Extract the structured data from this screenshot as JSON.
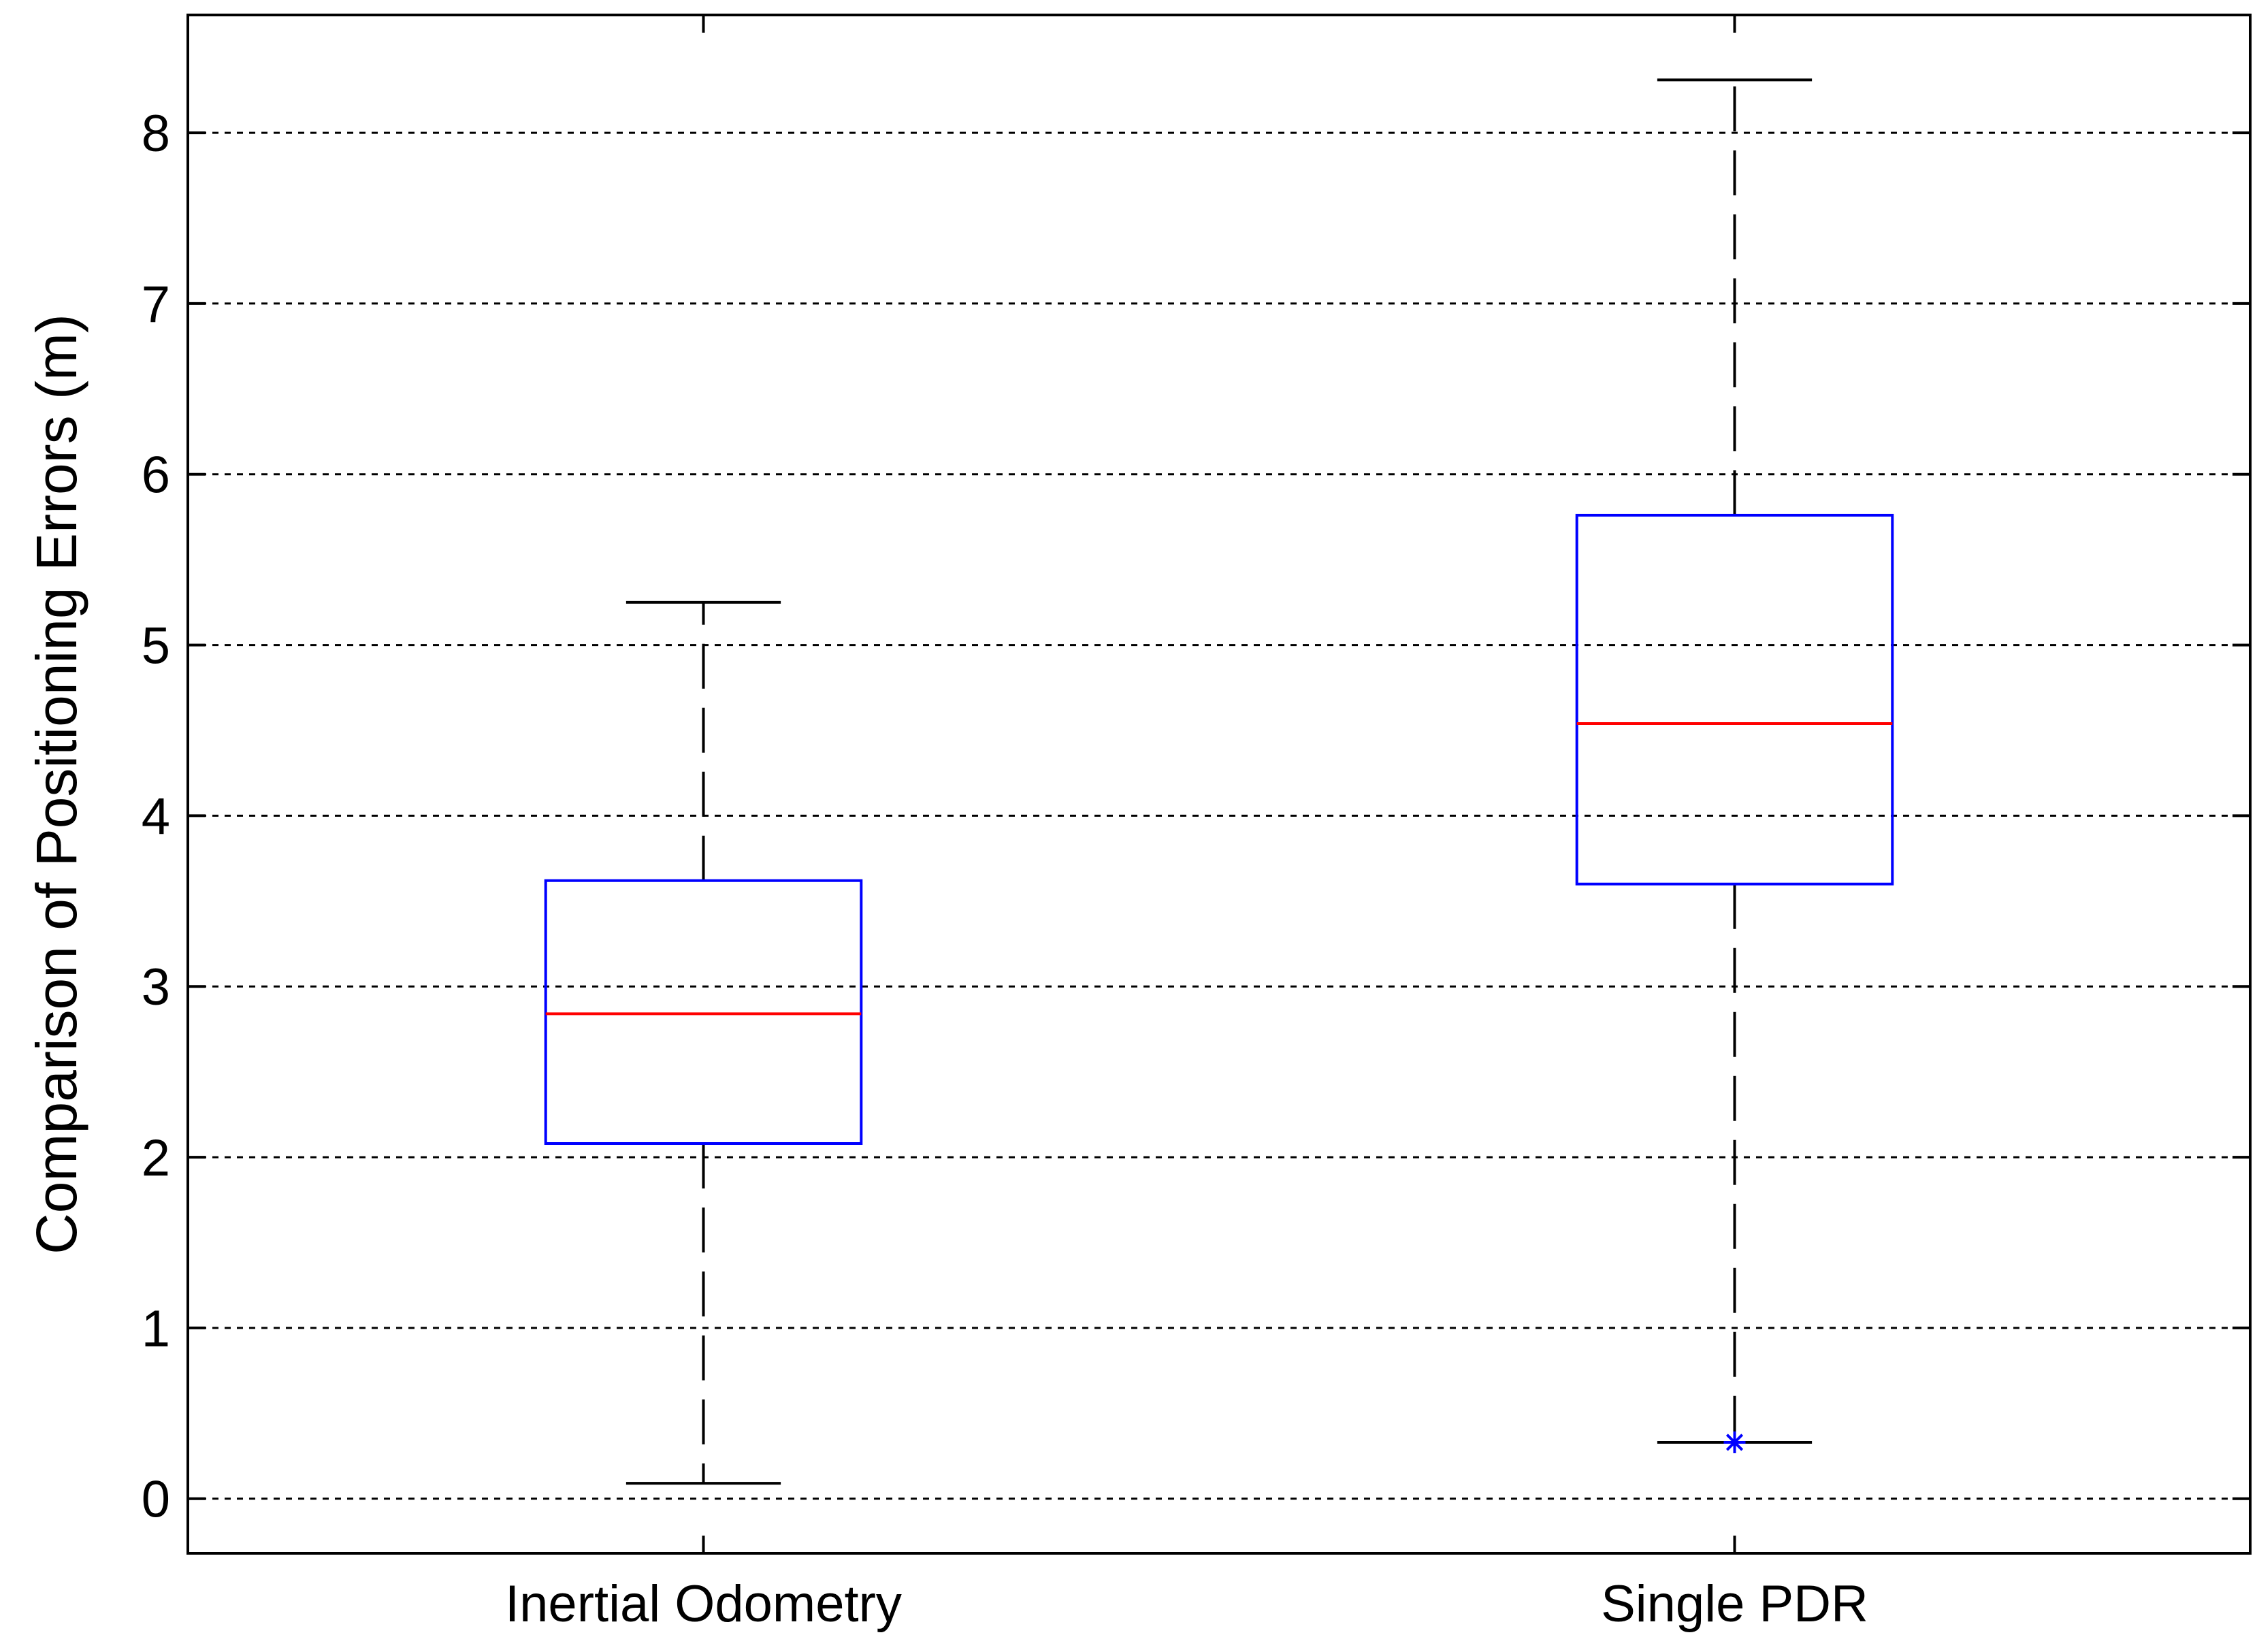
{
  "chart_data": {
    "type": "box",
    "ylabel": "Comparison of Positioning Errors (m)",
    "xlabel": "",
    "title": "",
    "ylim": [
      -0.32,
      8.69
    ],
    "yticks": [
      0,
      1,
      2,
      3,
      4,
      5,
      6,
      7,
      8
    ],
    "grid": true,
    "categories": [
      "Inertial Odometry",
      "Single PDR"
    ],
    "boxes": [
      {
        "category": "Inertial Odometry",
        "whisker_low": 0.09,
        "q1": 2.08,
        "median": 2.84,
        "q3": 3.62,
        "whisker_high": 5.25,
        "outliers": []
      },
      {
        "category": "Single PDR",
        "whisker_low": 0.33,
        "q1": 3.6,
        "median": 4.54,
        "q3": 5.76,
        "whisker_high": 8.31,
        "outliers": [
          0.33
        ]
      }
    ],
    "colors": {
      "box": "#0000ff",
      "median": "#ff0000",
      "whisker": "#000000",
      "outlier": "#0000ff",
      "grid": "#000000"
    }
  }
}
